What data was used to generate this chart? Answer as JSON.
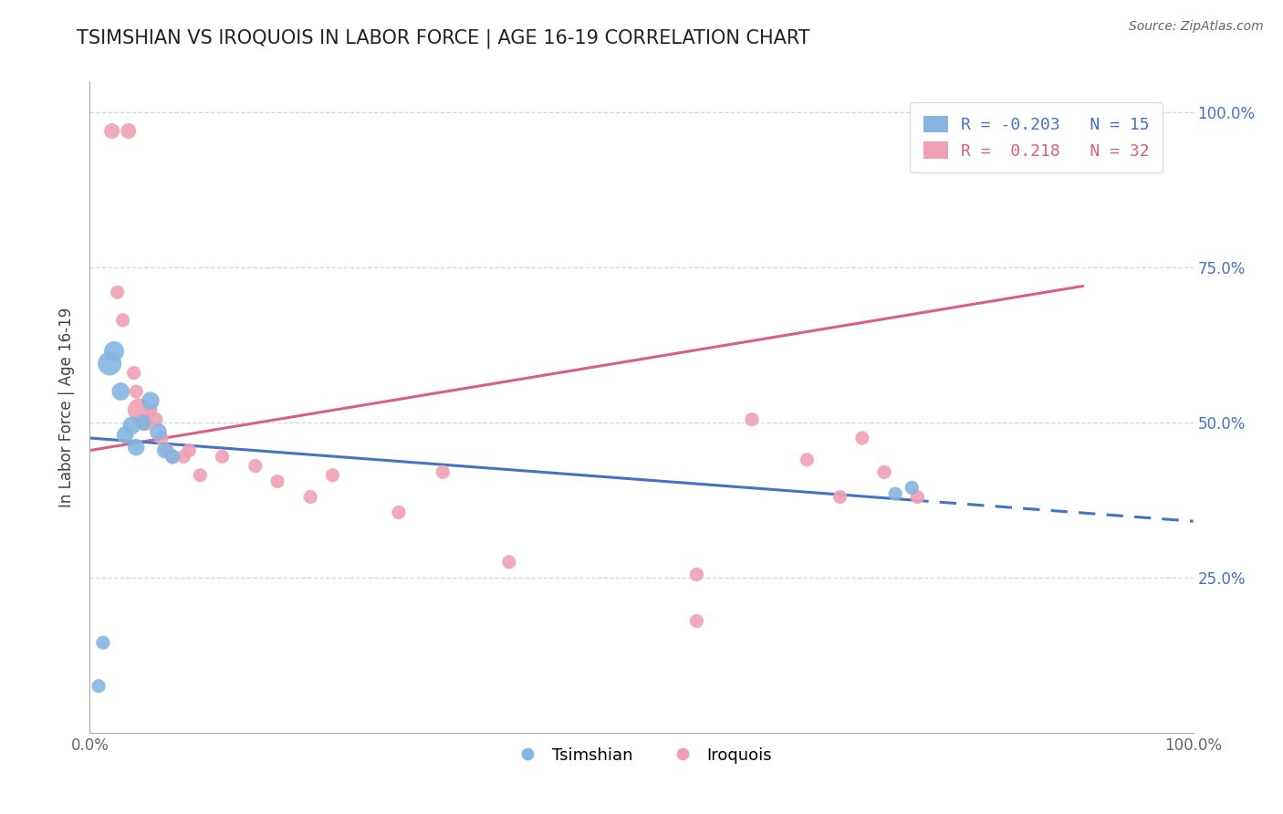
{
  "title": "TSIMSHIAN VS IROQUOIS IN LABOR FORCE | AGE 16-19 CORRELATION CHART",
  "source_text": "Source: ZipAtlas.com",
  "ylabel": "In Labor Force | Age 16-19",
  "xlim": [
    0.0,
    1.0
  ],
  "ylim": [
    0.0,
    1.05
  ],
  "ytick_vals": [
    0.25,
    0.5,
    0.75,
    1.0
  ],
  "ytick_labels": [
    "25.0%",
    "50.0%",
    "75.0%",
    "100.0%"
  ],
  "xtick_vals": [
    0.0,
    1.0
  ],
  "xtick_labels": [
    "0.0%",
    "100.0%"
  ],
  "grid_color": "#cccccc",
  "background_color": "#ffffff",
  "tsimshian_color": "#85b5e0",
  "iroquois_color": "#f0a0b5",
  "tsimshian_line_color": "#4472c4",
  "iroquois_line_color": "#d9607a",
  "legend_tsimshian_label": "R = -0.203   N = 15",
  "legend_iroquois_label": "R =  0.218   N = 32",
  "tsimshian_x": [
    0.008,
    0.012,
    0.018,
    0.022,
    0.028,
    0.032,
    0.038,
    0.042,
    0.048,
    0.055,
    0.062,
    0.068,
    0.075,
    0.73,
    0.745
  ],
  "tsimshian_y": [
    0.075,
    0.145,
    0.595,
    0.615,
    0.55,
    0.48,
    0.495,
    0.46,
    0.5,
    0.535,
    0.485,
    0.455,
    0.445,
    0.385,
    0.395
  ],
  "tsimshian_sizes": [
    120,
    120,
    350,
    250,
    200,
    180,
    200,
    180,
    160,
    200,
    180,
    160,
    140,
    120,
    120
  ],
  "iroquois_x": [
    0.02,
    0.035,
    0.025,
    0.03,
    0.04,
    0.042,
    0.045,
    0.05,
    0.055,
    0.06,
    0.065,
    0.07,
    0.075,
    0.085,
    0.09,
    0.1,
    0.12,
    0.15,
    0.17,
    0.2,
    0.22,
    0.28,
    0.32,
    0.38,
    0.55,
    0.6,
    0.65,
    0.68,
    0.7,
    0.72,
    0.75,
    0.55
  ],
  "iroquois_y": [
    0.97,
    0.97,
    0.71,
    0.665,
    0.58,
    0.55,
    0.52,
    0.5,
    0.52,
    0.505,
    0.475,
    0.455,
    0.445,
    0.445,
    0.455,
    0.415,
    0.445,
    0.43,
    0.405,
    0.38,
    0.415,
    0.355,
    0.42,
    0.275,
    0.18,
    0.505,
    0.44,
    0.38,
    0.475,
    0.42,
    0.38,
    0.255
  ],
  "iroquois_sizes": [
    150,
    150,
    120,
    120,
    120,
    120,
    350,
    180,
    120,
    120,
    120,
    120,
    120,
    120,
    120,
    120,
    120,
    120,
    120,
    120,
    120,
    120,
    120,
    120,
    120,
    120,
    120,
    120,
    120,
    120,
    120,
    120
  ],
  "title_fontsize": 15,
  "axis_label_fontsize": 12,
  "tick_fontsize": 12,
  "legend_fontsize": 13,
  "ylabel_color": "#444444",
  "yticklabel_color": "#4472c4",
  "xticklabel_color": "#666666",
  "source_color": "#666666",
  "spine_color": "#aaaaaa"
}
